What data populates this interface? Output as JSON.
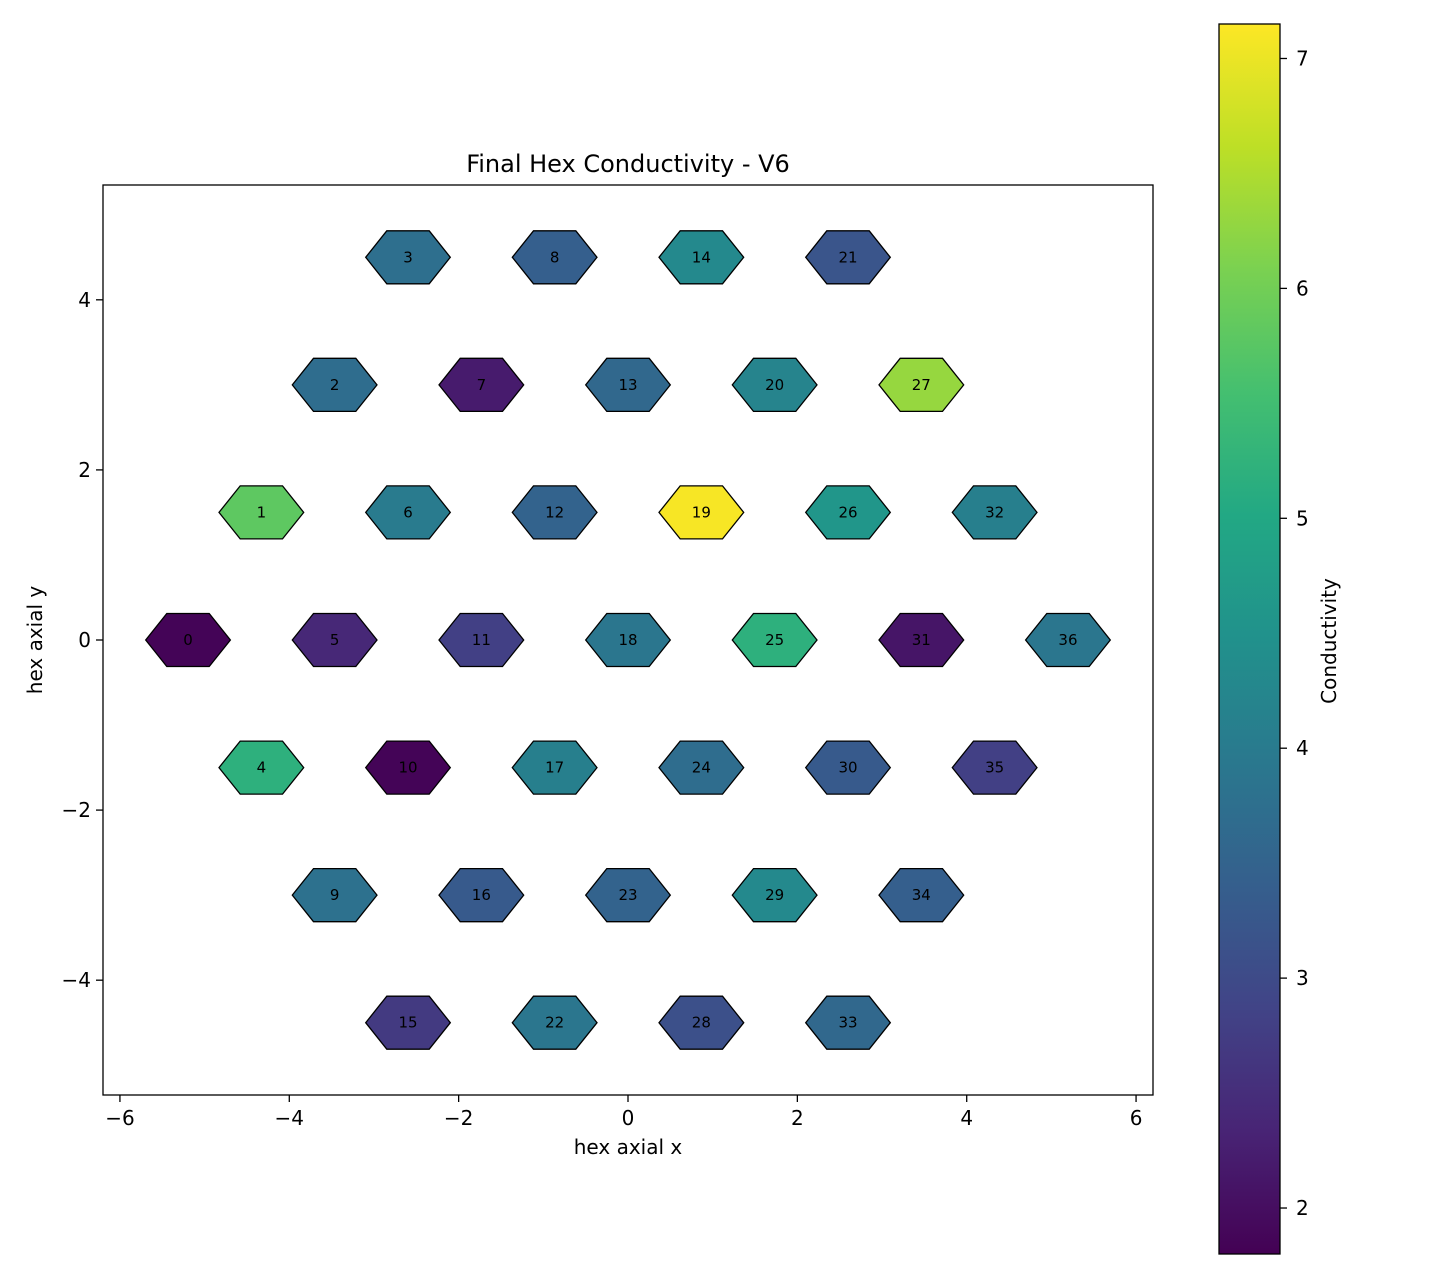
{
  "chart_data": {
    "type": "hexbin",
    "title": "Final Hex Conductivity - V6",
    "xlabel": "hex axial x",
    "ylabel": "hex axial y",
    "xlim": [
      -6.2,
      6.2
    ],
    "ylim": [
      -5.35,
      5.35
    ],
    "xticks": [
      -6,
      -4,
      -2,
      0,
      2,
      4,
      6
    ],
    "yticks": [
      -4,
      -2,
      0,
      2,
      4
    ],
    "colorbar": {
      "label": "Conductivity",
      "colormap": "viridis",
      "range": [
        1.8,
        7.15
      ],
      "ticks": [
        2,
        3,
        4,
        5,
        6,
        7
      ]
    },
    "hexagons": [
      {
        "id": "0",
        "x": -5.196,
        "y": 0.0,
        "value": 1.85
      },
      {
        "id": "1",
        "x": -4.33,
        "y": 1.5,
        "value": 5.8
      },
      {
        "id": "2",
        "x": -3.464,
        "y": 3.0,
        "value": 3.7
      },
      {
        "id": "3",
        "x": -2.598,
        "y": 4.5,
        "value": 3.75
      },
      {
        "id": "4",
        "x": -4.33,
        "y": -1.5,
        "value": 5.2
      },
      {
        "id": "5",
        "x": -3.464,
        "y": 0.0,
        "value": 2.4
      },
      {
        "id": "6",
        "x": -2.598,
        "y": 1.5,
        "value": 4.0
      },
      {
        "id": "7",
        "x": -1.732,
        "y": 3.0,
        "value": 2.2
      },
      {
        "id": "8",
        "x": -0.866,
        "y": 4.5,
        "value": 3.4
      },
      {
        "id": "9",
        "x": -3.464,
        "y": -3.0,
        "value": 3.8
      },
      {
        "id": "10",
        "x": -2.598,
        "y": -1.5,
        "value": 1.85
      },
      {
        "id": "11",
        "x": -1.732,
        "y": 0.0,
        "value": 2.8
      },
      {
        "id": "12",
        "x": -0.866,
        "y": 1.5,
        "value": 3.5
      },
      {
        "id": "13",
        "x": 0.0,
        "y": 3.0,
        "value": 3.6
      },
      {
        "id": "14",
        "x": 0.866,
        "y": 4.5,
        "value": 4.3
      },
      {
        "id": "15",
        "x": -2.598,
        "y": -4.5,
        "value": 2.7
      },
      {
        "id": "16",
        "x": -1.732,
        "y": -3.0,
        "value": 3.3
      },
      {
        "id": "17",
        "x": -0.866,
        "y": -1.5,
        "value": 4.1
      },
      {
        "id": "18",
        "x": 0.0,
        "y": 0.0,
        "value": 3.9
      },
      {
        "id": "19",
        "x": 0.866,
        "y": 1.5,
        "value": 7.1
      },
      {
        "id": "20",
        "x": 1.732,
        "y": 3.0,
        "value": 4.2
      },
      {
        "id": "21",
        "x": 2.598,
        "y": 4.5,
        "value": 3.2
      },
      {
        "id": "22",
        "x": -0.866,
        "y": -4.5,
        "value": 3.9
      },
      {
        "id": "23",
        "x": 0.0,
        "y": -3.0,
        "value": 3.5
      },
      {
        "id": "24",
        "x": 0.866,
        "y": -1.5,
        "value": 3.7
      },
      {
        "id": "25",
        "x": 1.732,
        "y": 0.0,
        "value": 5.2
      },
      {
        "id": "26",
        "x": 2.598,
        "y": 1.5,
        "value": 4.6
      },
      {
        "id": "27",
        "x": 3.464,
        "y": 3.0,
        "value": 6.3
      },
      {
        "id": "28",
        "x": 0.866,
        "y": -4.5,
        "value": 3.1
      },
      {
        "id": "29",
        "x": 1.732,
        "y": -3.0,
        "value": 4.3
      },
      {
        "id": "30",
        "x": 2.598,
        "y": -1.5,
        "value": 3.3
      },
      {
        "id": "31",
        "x": 3.464,
        "y": 0.0,
        "value": 2.1
      },
      {
        "id": "32",
        "x": 4.33,
        "y": 1.5,
        "value": 4.1
      },
      {
        "id": "33",
        "x": 2.598,
        "y": -4.5,
        "value": 3.6
      },
      {
        "id": "34",
        "x": 3.464,
        "y": -3.0,
        "value": 3.4
      },
      {
        "id": "35",
        "x": 4.33,
        "y": -1.5,
        "value": 2.8
      },
      {
        "id": "36",
        "x": 5.196,
        "y": 0.0,
        "value": 3.9
      }
    ]
  }
}
